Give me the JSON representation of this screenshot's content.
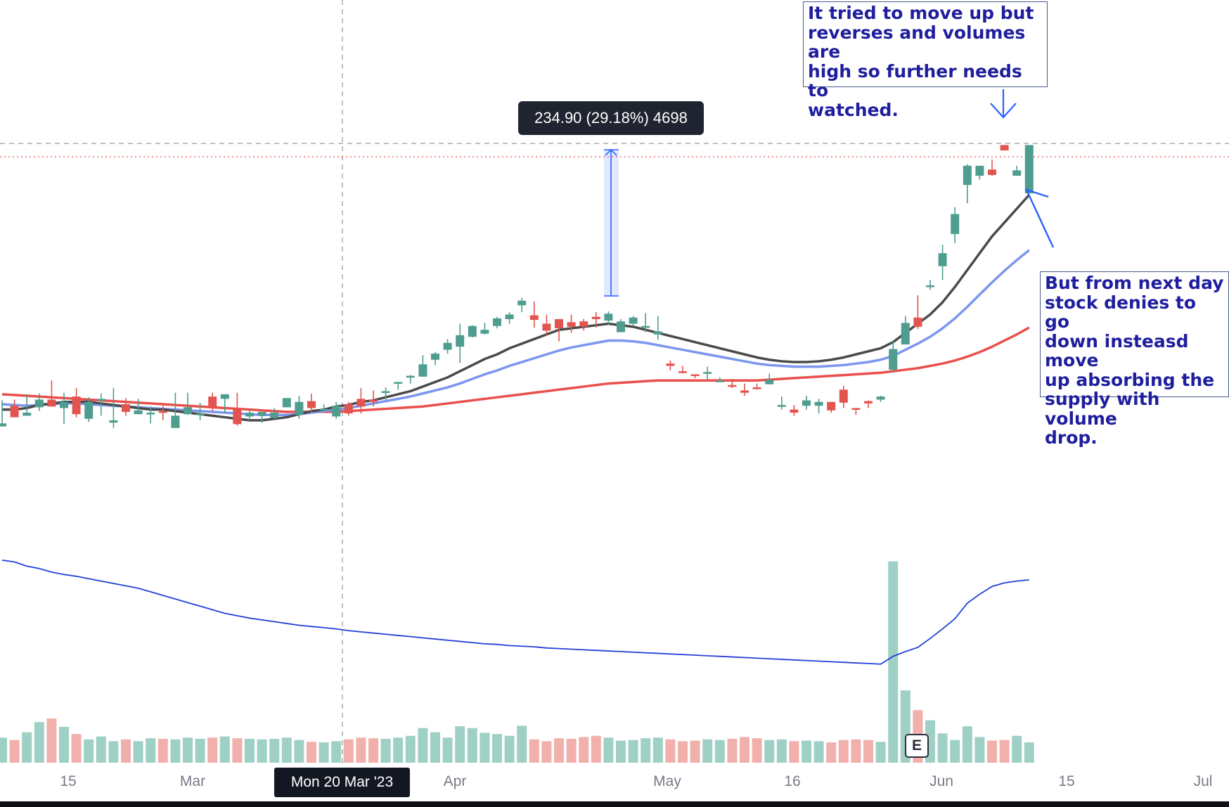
{
  "chart_data": {
    "type": "candlestick",
    "candles": [
      [
        468,
        472,
        502,
        493
      ],
      [
        495,
        480,
        503,
        486
      ],
      [
        482,
        486,
        510,
        500
      ],
      [
        493,
        503,
        511,
        488
      ],
      [
        503,
        494,
        528,
        508
      ],
      [
        492,
        500,
        512,
        471
      ],
      [
        507,
        484,
        518,
        480
      ],
      [
        478,
        500,
        506,
        474
      ],
      [
        504,
        504,
        511,
        482
      ],
      [
        473,
        476,
        518,
        466
      ],
      [
        497,
        487,
        505,
        482
      ],
      [
        484,
        489,
        504,
        484
      ],
      [
        484,
        486,
        494,
        472
      ],
      [
        488,
        486,
        495,
        476
      ],
      [
        466,
        482,
        512,
        469
      ],
      [
        484,
        493,
        512,
        483
      ],
      [
        484,
        485,
        499,
        476
      ],
      [
        507,
        494,
        512,
        488
      ],
      [
        504,
        510,
        510,
        485
      ],
      [
        491,
        471,
        512,
        469
      ],
      [
        481,
        486,
        490,
        476
      ],
      [
        482,
        487,
        487,
        473
      ],
      [
        479,
        486,
        492,
        478
      ],
      [
        493,
        505,
        504,
        493
      ],
      [
        483,
        500,
        508,
        478
      ],
      [
        501,
        492,
        511,
        486
      ],
      [
        491,
        491,
        497,
        490
      ],
      [
        481,
        495,
        500,
        478
      ],
      [
        497,
        485,
        500,
        482
      ],
      [
        504,
        494,
        518,
        485
      ],
      [
        503,
        500,
        515,
        494
      ],
      [
        512,
        514,
        519,
        502
      ],
      [
        525,
        526,
        524,
        516
      ],
      [
        532,
        534,
        535,
        524
      ],
      [
        533,
        549,
        561,
        536
      ],
      [
        555,
        563,
        565,
        548
      ],
      [
        568,
        577,
        582,
        563
      ],
      [
        572,
        587,
        602,
        551
      ],
      [
        585,
        599,
        600,
        584
      ],
      [
        589,
        594,
        603,
        588
      ],
      [
        599,
        609,
        611,
        596
      ],
      [
        608,
        614,
        617,
        602
      ],
      [
        626,
        632,
        636,
        617
      ],
      [
        613,
        607,
        631,
        597
      ],
      [
        602,
        593,
        614,
        587
      ],
      [
        608,
        596,
        606,
        579
      ],
      [
        604,
        598,
        614,
        590
      ],
      [
        605,
        598,
        608,
        593
      ],
      [
        611,
        608,
        617,
        597
      ],
      [
        606,
        615,
        618,
        601
      ],
      [
        591,
        605,
        608,
        602
      ],
      [
        602,
        610,
        612,
        600
      ],
      [
        597,
        599,
        616,
        591
      ],
      [
        588,
        592,
        612,
        581
      ],
      [
        550,
        547,
        554,
        541
      ],
      [
        540,
        539,
        547,
        537
      ],
      [
        536,
        534,
        536,
        531
      ],
      [
        537,
        539,
        546,
        528
      ],
      [
        528,
        528,
        532,
        528
      ],
      [
        522,
        520,
        530,
        518
      ],
      [
        515,
        512,
        524,
        508
      ],
      [
        519,
        517,
        524,
        516
      ],
      [
        523,
        529,
        537,
        524
      ],
      [
        496,
        496,
        507,
        490
      ],
      [
        490,
        486,
        496,
        482
      ],
      [
        495,
        502,
        508,
        490
      ],
      [
        495,
        500,
        504,
        485
      ],
      [
        500,
        489,
        498,
        486
      ],
      [
        516,
        499,
        521,
        492
      ],
      [
        492,
        490,
        492,
        483
      ],
      [
        501,
        498,
        502,
        492
      ],
      [
        503,
        507,
        508,
        500
      ],
      [
        542,
        569,
        580,
        538
      ],
      [
        575,
        603,
        612,
        575
      ],
      [
        610,
        598,
        639,
        595
      ],
      [
        652,
        652,
        659,
        646
      ],
      [
        677,
        694,
        705,
        659
      ],
      [
        719,
        745,
        754,
        707
      ],
      [
        783,
        808,
        810,
        759
      ],
      [
        795,
        808,
        807,
        790
      ],
      [
        803,
        796,
        816,
        795
      ],
      [
        835,
        828,
        827,
        832
      ],
      [
        795,
        802,
        808,
        809
      ],
      [
        772,
        835,
        820,
        803
      ]
    ],
    "ma_fast": [
      490,
      490,
      492,
      496,
      498,
      500,
      500,
      500,
      498,
      496,
      494,
      492,
      490,
      490,
      488,
      486,
      484,
      482,
      480,
      478,
      476,
      476,
      478,
      480,
      484,
      488,
      490,
      494,
      496,
      500,
      502,
      506,
      510,
      514,
      520,
      526,
      532,
      540,
      548,
      556,
      562,
      570,
      576,
      582,
      588,
      594,
      596,
      598,
      600,
      602,
      600,
      598,
      594,
      590,
      586,
      582,
      578,
      574,
      570,
      566,
      562,
      558,
      555,
      553,
      552,
      552,
      553,
      555,
      558,
      562,
      566,
      570,
      578,
      590,
      602,
      614,
      630,
      650,
      672,
      694,
      716,
      734,
      752,
      770
    ],
    "ma_mid": [
      497,
      496,
      495,
      496,
      497,
      498,
      498,
      497,
      496,
      495,
      494,
      493,
      492,
      491,
      490,
      489,
      488,
      487,
      486,
      485,
      484,
      483,
      483,
      483,
      484,
      486,
      488,
      490,
      492,
      495,
      498,
      501,
      504,
      507,
      511,
      515,
      519,
      524,
      530,
      536,
      541,
      547,
      552,
      557,
      562,
      567,
      571,
      574,
      577,
      580,
      580,
      579,
      577,
      574,
      571,
      568,
      565,
      562,
      559,
      556,
      553,
      550,
      548,
      547,
      546,
      546,
      546,
      547,
      548,
      550,
      552,
      555,
      560,
      568,
      576,
      585,
      596,
      609,
      624,
      640,
      656,
      671,
      685,
      698
    ],
    "ma_slow": [
      510,
      509,
      508,
      507,
      506,
      505,
      504,
      503,
      502,
      501,
      500,
      499,
      498,
      497,
      496,
      495,
      494,
      493,
      492,
      491,
      490,
      489,
      488,
      487,
      487,
      487,
      487,
      487,
      488,
      489,
      490,
      491,
      492,
      493,
      494,
      496,
      498,
      500,
      502,
      504,
      506,
      508,
      510,
      512,
      514,
      516,
      518,
      520,
      522,
      524,
      525,
      526,
      527,
      528,
      528,
      528,
      528,
      528,
      528,
      528,
      528,
      528,
      529,
      530,
      531,
      532,
      533,
      534,
      535,
      536,
      537,
      538,
      540,
      542,
      544,
      547,
      550,
      554,
      559,
      565,
      572,
      580,
      588,
      597
    ],
    "volume": [
      4.2,
      3.8,
      5.1,
      6.8,
      7.4,
      6.0,
      4.8,
      3.9,
      4.4,
      3.6,
      3.9,
      3.6,
      4.1,
      4.0,
      3.9,
      4.2,
      4.0,
      4.2,
      4.4,
      4.1,
      4.0,
      3.9,
      4.0,
      4.2,
      3.8,
      3.5,
      3.4,
      3.6,
      3.9,
      4.2,
      4.1,
      4.0,
      4.2,
      4.5,
      5.8,
      5.1,
      4.2,
      6.1,
      5.8,
      5.0,
      4.8,
      4.5,
      6.2,
      3.9,
      3.6,
      4.1,
      4.0,
      4.3,
      4.5,
      4.2,
      3.7,
      3.8,
      4.1,
      4.2,
      3.9,
      3.6,
      3.7,
      3.9,
      3.8,
      4.0,
      4.3,
      4.1,
      3.8,
      3.9,
      3.6,
      3.7,
      3.6,
      3.4,
      3.8,
      3.9,
      3.8,
      3.5,
      33.7,
      12.1,
      8.8,
      7.1,
      4.9,
      3.8,
      6.1,
      4.3,
      3.7,
      3.8,
      4.5,
      3.4
    ],
    "volume_ma": [
      33.9,
      33.6,
      32.9,
      32.5,
      31.9,
      31.5,
      31.2,
      30.8,
      30.4,
      30.0,
      29.6,
      29.2,
      28.6,
      28.0,
      27.4,
      26.8,
      26.2,
      25.6,
      25.0,
      24.6,
      24.2,
      23.9,
      23.6,
      23.3,
      23.0,
      22.8,
      22.6,
      22.4,
      22.1,
      21.9,
      21.7,
      21.5,
      21.3,
      21.1,
      20.9,
      20.7,
      20.5,
      20.3,
      20.1,
      19.9,
      19.8,
      19.6,
      19.5,
      19.4,
      19.2,
      19.1,
      19.0,
      18.9,
      18.8,
      18.7,
      18.6,
      18.5,
      18.4,
      18.3,
      18.2,
      18.1,
      18.0,
      17.9,
      17.8,
      17.7,
      17.6,
      17.5,
      17.4,
      17.3,
      17.2,
      17.1,
      17.0,
      16.9,
      16.8,
      16.7,
      16.6,
      16.5,
      17.8,
      18.6,
      19.3,
      20.8,
      22.4,
      24.1,
      26.7,
      28.2,
      29.5,
      30.1,
      30.4,
      30.6
    ],
    "x_ticks": [
      "15",
      "Mar",
      "Apr",
      "May",
      "16",
      "Jun",
      "15",
      "Jul"
    ],
    "measure": {
      "label": "234.90 (29.18%) 4698"
    },
    "earnings_marker": "E",
    "crosshair_date": "Mon 20 Mar '23"
  },
  "annotations": {
    "top": "It tried to move up but\nreverses and volumes are\nhigh so further needs to\nwatched.",
    "right": "But from next day\nstock denies to go\ndown insteasd move\nup absorbing the\nsupply with volume\ndrop."
  },
  "colors": {
    "up": "#4e9d8f",
    "down": "#e2544f",
    "ma_fast": "#4a4a4a",
    "ma_mid": "#7b96ef",
    "ma_slow": "#ea4f4b",
    "volume_up": "#9fd0c6",
    "volume_down": "#f2b0ad",
    "volume_ma": "#2340d8",
    "annotation_text": "#1e1e9e"
  }
}
